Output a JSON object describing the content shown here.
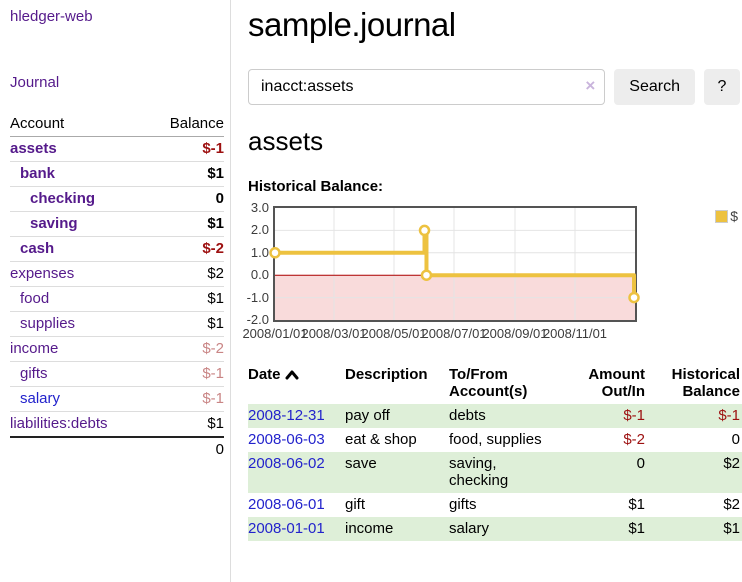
{
  "app": {
    "brand": "hledger-web",
    "nav_journal": "Journal"
  },
  "colors": {
    "link_purple": "#551A8B",
    "link_blue": "#2323CC",
    "negative_strong": "#9D1010",
    "negative_soft": "#C98585",
    "row_green": "#DEEFD8",
    "series_yellow": "#EDC240",
    "negative_region_pink": "#F9DBDB",
    "zero_line_red": "#AA0000"
  },
  "sidebar": {
    "header": {
      "account": "Account",
      "balance": "Balance"
    },
    "accounts": [
      {
        "name": "assets",
        "balance": "$-1"
      },
      {
        "name": "bank",
        "balance": "$1"
      },
      {
        "name": "checking",
        "balance": "0"
      },
      {
        "name": "saving",
        "balance": "$1"
      },
      {
        "name": "cash",
        "balance": "$-2"
      },
      {
        "name": "expenses",
        "balance": "$2"
      },
      {
        "name": "food",
        "balance": "$1"
      },
      {
        "name": "supplies",
        "balance": "$1"
      },
      {
        "name": "income",
        "balance": "$-2"
      },
      {
        "name": "gifts",
        "balance": "$-1"
      },
      {
        "name": "salary",
        "balance": "$-1"
      },
      {
        "name": "liabilities:debts",
        "balance": "$1"
      }
    ],
    "total": "0"
  },
  "main": {
    "title": "sample.journal",
    "search": {
      "value": "inacct:assets",
      "clear_glyph": "×",
      "button_label": "Search",
      "help_label": "?"
    },
    "account_heading": "assets",
    "chart_heading": "Historical Balance:"
  },
  "chart_data": {
    "type": "line",
    "title": "Historical Balance:",
    "step": true,
    "series": [
      {
        "name": "$",
        "color": "#EDC240",
        "points": [
          {
            "date": "2008-01-01",
            "day": 0,
            "y": 1
          },
          {
            "date": "2008-06-01",
            "day": 152,
            "y": 2
          },
          {
            "date": "2008-06-03",
            "day": 154,
            "y": 0
          },
          {
            "date": "2008-12-31",
            "day": 365,
            "y": -1
          }
        ]
      }
    ],
    "x_ticks": [
      "2008/01/01",
      "2008/03/01",
      "2008/05/01",
      "2008/07/01",
      "2008/09/01",
      "2008/11/01"
    ],
    "x_tick_days": [
      0,
      60,
      121,
      182,
      244,
      305
    ],
    "x_range_days": [
      0,
      366
    ],
    "y_ticks": [
      3,
      2,
      1,
      0,
      -1,
      -2
    ],
    "y_tick_labels": [
      "3.0",
      "2.0",
      "1.0",
      "0.0",
      "-1.0",
      "-2.0"
    ],
    "ylim": [
      -2,
      3
    ],
    "grid": true,
    "legend_position": "top-right",
    "negative_region_color": "#F9DBDB",
    "zero_line_color": "#AA0000",
    "grid_color": "#E4E4E4"
  },
  "register": {
    "columns": {
      "date": "Date",
      "description": "Description",
      "accounts": "To/From\nAccount(s)",
      "amount": "Amount\nOut/In",
      "balance": "Historical\nBalance"
    },
    "rows": [
      {
        "date": "2008-12-31",
        "description": "pay off",
        "accounts": "debts",
        "amount": "$-1",
        "balance": "$-1"
      },
      {
        "date": "2008-06-03",
        "description": "eat & shop",
        "accounts": "food, supplies",
        "amount": "$-2",
        "balance": "0"
      },
      {
        "date": "2008-06-02",
        "description": "save",
        "accounts": "saving,\nchecking",
        "amount": "0",
        "balance": "$2"
      },
      {
        "date": "2008-06-01",
        "description": "gift",
        "accounts": "gifts",
        "amount": "$1",
        "balance": "$2"
      },
      {
        "date": "2008-01-01",
        "description": "income",
        "accounts": "salary",
        "amount": "$1",
        "balance": "$1"
      }
    ]
  }
}
